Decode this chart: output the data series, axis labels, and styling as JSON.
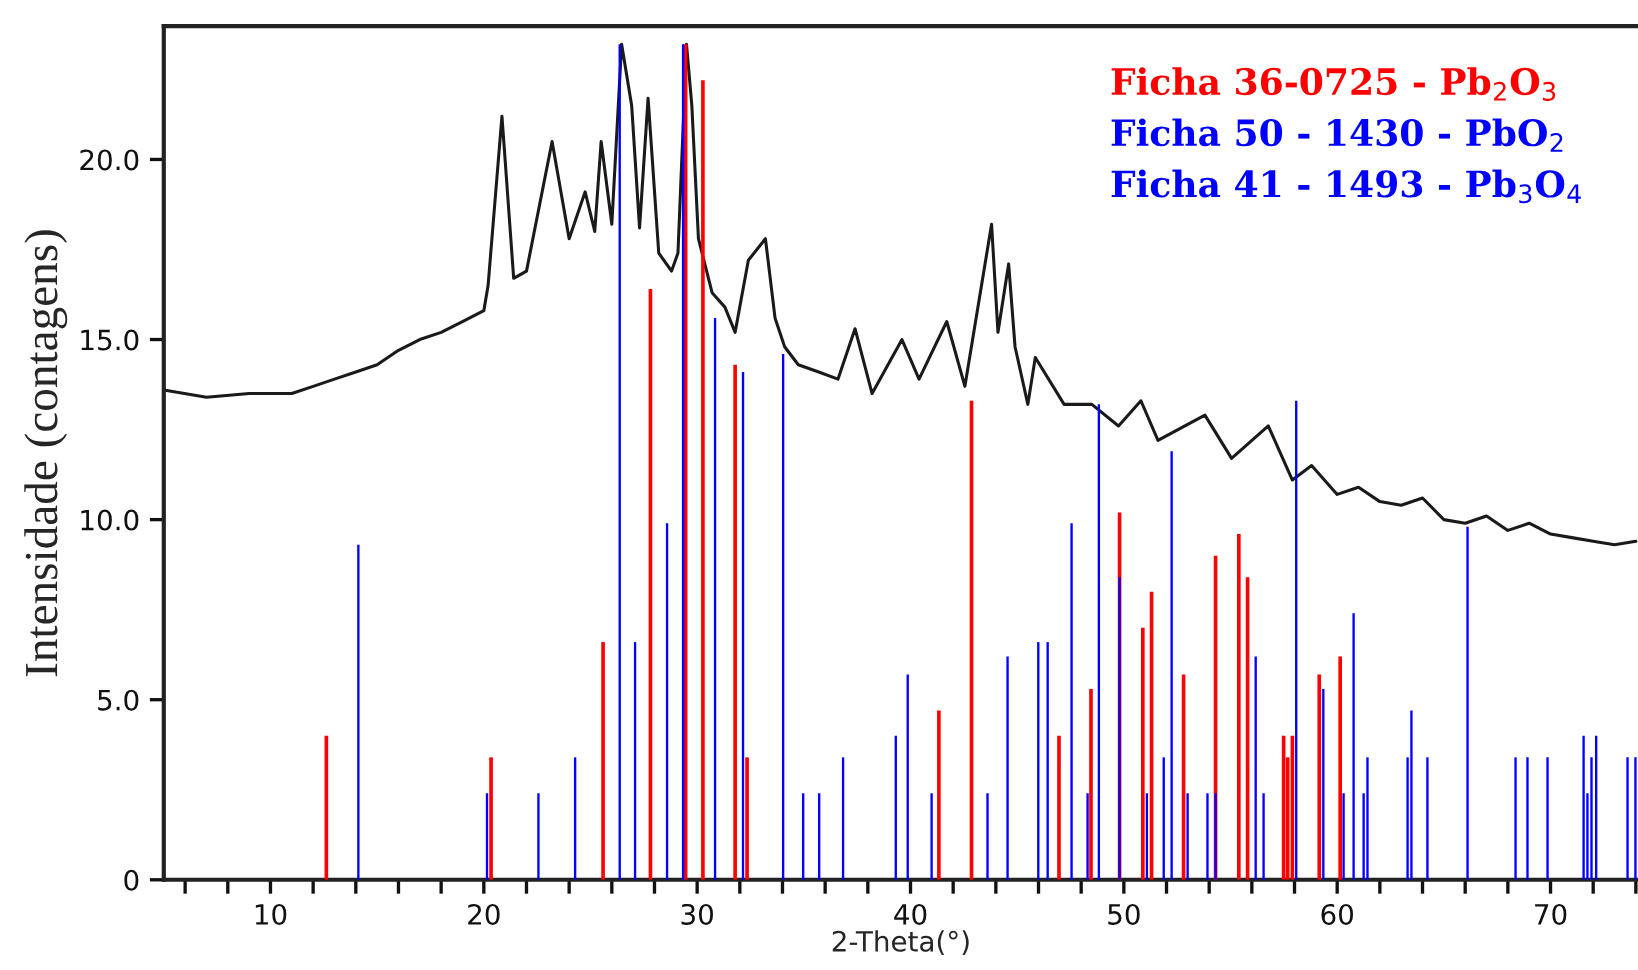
{
  "chart_data": {
    "type": "bar",
    "xlabel": "2-Theta(°)",
    "ylabel": "Intensidade (contagens)",
    "xlim": [
      5,
      74.1
    ],
    "ylim": [
      0,
      23.7
    ],
    "xticks": [
      {
        "value": 6,
        "label": null
      },
      {
        "value": 8,
        "label": null
      },
      10,
      {
        "value": 12,
        "label": null
      },
      {
        "value": 14,
        "label": null
      },
      {
        "value": 16,
        "label": null
      },
      {
        "value": 18,
        "label": null
      },
      20,
      {
        "value": 22,
        "label": null
      },
      {
        "value": 24,
        "label": null
      },
      {
        "value": 26,
        "label": null
      },
      {
        "value": 28,
        "label": null
      },
      30,
      {
        "value": 32,
        "label": null
      },
      {
        "value": 34,
        "label": null
      },
      {
        "value": 36,
        "label": null
      },
      {
        "value": 38,
        "label": null
      },
      40,
      {
        "value": 42,
        "label": null
      },
      {
        "value": 44,
        "label": null
      },
      {
        "value": 46,
        "label": null
      },
      {
        "value": 48,
        "label": null
      },
      50,
      {
        "value": 52,
        "label": null
      },
      {
        "value": 54,
        "label": null
      },
      {
        "value": 56,
        "label": null
      },
      {
        "value": 58,
        "label": null
      },
      60,
      {
        "value": 62,
        "label": null
      },
      {
        "value": 64,
        "label": null
      },
      {
        "value": 66,
        "label": null
      },
      {
        "value": 68,
        "label": null
      },
      70,
      {
        "value": 72,
        "label": null
      },
      {
        "value": 74,
        "label": null
      }
    ],
    "yticks": [
      0,
      {
        "value": 5,
        "label": "5.0"
      },
      {
        "value": 10,
        "label": "10.0"
      },
      {
        "value": 15,
        "label": "15.0"
      },
      {
        "value": 20,
        "label": "20.0"
      }
    ],
    "legend": "top right",
    "series": [
      {
        "type": "line",
        "color": "#1a1a1a",
        "x": [
          5,
          7,
          9,
          11,
          12,
          13,
          14,
          15,
          16,
          17,
          18,
          19,
          20,
          20.2,
          20.85,
          21.4,
          22,
          23.2,
          24,
          24.75,
          25.2,
          25.5,
          26.0,
          26.46,
          26.93,
          27.3,
          27.7,
          28.2,
          28.8,
          29.1,
          29.5,
          29.75,
          30.06,
          30.7,
          31.3,
          31.78,
          32.4,
          33.2,
          33.65,
          34.1,
          34.74,
          35.7,
          36.6,
          37.4,
          38.2,
          39.6,
          40.4,
          41.7,
          42.55,
          43.8,
          44.1,
          44.6,
          44.9,
          45.5,
          45.85,
          47.2,
          48.5,
          49.75,
          50.8,
          51.6,
          53.8,
          55.05,
          56.77,
          57.9,
          58.8,
          60,
          61,
          62,
          63,
          64,
          65,
          66,
          67,
          68,
          69,
          70,
          71,
          72,
          73,
          74
        ],
        "values": [
          13.6,
          13.4,
          13.5,
          13.5,
          13.7,
          13.9,
          14.1,
          14.3,
          14.7,
          15.0,
          15.2,
          15.5,
          15.8,
          16.5,
          21.2,
          16.7,
          16.9,
          20.5,
          17.8,
          19.1,
          18.0,
          20.5,
          18.2,
          23.2,
          21.5,
          18.1,
          21.7,
          17.4,
          16.9,
          17.4,
          23.2,
          21.5,
          17.8,
          16.3,
          15.9,
          15.2,
          17.2,
          17.8,
          15.6,
          14.8,
          14.3,
          14.1,
          13.9,
          15.3,
          13.5,
          15.0,
          13.9,
          15.5,
          13.7,
          18.2,
          15.2,
          17.1,
          14.8,
          13.2,
          14.5,
          13.2,
          13.2,
          12.6,
          13.3,
          12.2,
          12.9,
          11.7,
          12.6,
          11.1,
          11.5,
          10.7,
          10.9,
          10.5,
          10.4,
          10.6,
          10.0,
          9.9,
          10.1,
          9.7,
          9.9,
          9.6,
          9.5,
          9.4,
          9.3,
          9.4
        ]
      },
      {
        "name": "Ficha 36-0725 - Pb$_{2}$O$_{3}$",
        "color": "#ff0000",
        "x": [
          12.62,
          20.34,
          25.59,
          27.81,
          29.46,
          30.27,
          31.78,
          32.34,
          41.33,
          42.86,
          46.96,
          48.46,
          49.8,
          50.89,
          51.3,
          52.8,
          54.3,
          55.39,
          55.8,
          57.49,
          57.68,
          57.9,
          59.16,
          60.14
        ],
        "values": [
          4.0,
          3.4,
          6.6,
          16.4,
          23.2,
          22.2,
          14.3,
          3.4,
          4.7,
          13.3,
          4.0,
          5.3,
          10.2,
          7.0,
          8.0,
          5.7,
          9.0,
          9.6,
          8.4,
          4.0,
          3.4,
          4.0,
          5.7,
          6.2
        ]
      },
      {
        "name": "Ficha 50 - 1430 - PbO$_{2}$",
        "color": "#0000ff",
        "x": [
          20.15,
          28.59,
          29.34,
          32.15,
          36.84,
          48.83,
          49.8,
          52.24,
          53.92,
          58.08,
          59.35,
          63.48,
          66.11,
          71.73,
          73.61
        ],
        "values": [
          2.4,
          9.9,
          23.2,
          14.1,
          3.4,
          13.2,
          8.4,
          11.9,
          2.4,
          13.3,
          5.3,
          4.7,
          9.8,
          2.4,
          3.4
        ]
      },
      {
        "name": "Ficha 41 - 1493 - Pb$_{3}$O$_{4}$",
        "color": "#0000ff",
        "x": [
          14.12,
          22.56,
          24.28,
          26.37,
          27.09,
          30.84,
          34.03,
          34.97,
          35.72,
          39.31,
          39.87,
          40.99,
          43.61,
          44.55,
          45.99,
          46.43,
          47.55,
          48.3,
          51.08,
          51.87,
          52.99,
          54.3,
          56.18,
          56.55,
          60.3,
          60.77,
          61.24,
          61.42,
          63.3,
          64.23,
          68.36,
          68.92,
          69.86,
          71.55,
          71.92,
          72.14,
          73.98
        ],
        "values": [
          9.3,
          2.4,
          3.4,
          23.2,
          6.6,
          15.6,
          14.6,
          2.4,
          2.4,
          4.0,
          5.7,
          2.4,
          2.4,
          6.2,
          6.6,
          6.6,
          9.9,
          2.4,
          2.4,
          3.4,
          2.4,
          2.4,
          6.2,
          2.4,
          2.4,
          7.4,
          2.4,
          3.4,
          3.4,
          3.4,
          3.4,
          3.4,
          3.4,
          4.0,
          3.4,
          4.0,
          3.4
        ]
      }
    ]
  }
}
